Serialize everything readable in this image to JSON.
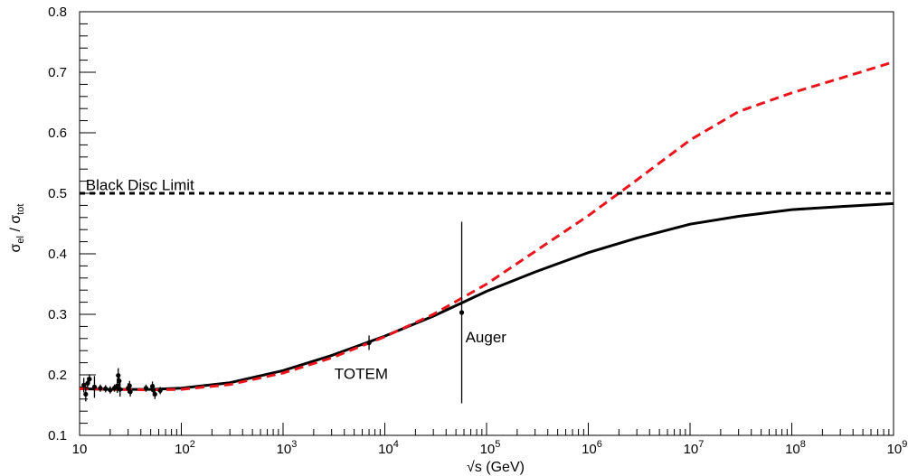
{
  "chart_data": {
    "type": "line",
    "xlabel": "√s (GeV)",
    "ylabel_main": "σ",
    "ylabel_sub1": "el",
    "ylabel_mid": " / σ",
    "ylabel_sub2": "tot",
    "xscale": "log",
    "xlim": [
      10,
      1000000000
    ],
    "ylim": [
      0.1,
      0.8
    ],
    "x_ticks": [
      {
        "value": 10,
        "base": "10",
        "exp": ""
      },
      {
        "value": 100,
        "base": "10",
        "exp": "2"
      },
      {
        "value": 1000,
        "base": "10",
        "exp": "3"
      },
      {
        "value": 10000,
        "base": "10",
        "exp": "4"
      },
      {
        "value": 100000,
        "base": "10",
        "exp": "5"
      },
      {
        "value": 1000000,
        "base": "10",
        "exp": "6"
      },
      {
        "value": 10000000,
        "base": "10",
        "exp": "7"
      },
      {
        "value": 100000000,
        "base": "10",
        "exp": "8"
      },
      {
        "value": 1000000000,
        "base": "10",
        "exp": "9"
      }
    ],
    "y_ticks": [
      {
        "value": 0.1,
        "label": "0.1"
      },
      {
        "value": 0.2,
        "label": "0.2"
      },
      {
        "value": 0.3,
        "label": "0.3"
      },
      {
        "value": 0.4,
        "label": "0.4"
      },
      {
        "value": 0.5,
        "label": "0.5"
      },
      {
        "value": 0.6,
        "label": "0.6"
      },
      {
        "value": 0.7,
        "label": "0.7"
      },
      {
        "value": 0.8,
        "label": "0.8"
      }
    ],
    "series": [
      {
        "style": "solid",
        "color": "#000000",
        "x": [
          10,
          20,
          50,
          100,
          300,
          1000,
          3000,
          10000,
          30000,
          100000,
          300000,
          1000000,
          3000000,
          10000000,
          30000000,
          100000000,
          300000000,
          1000000000
        ],
        "y": [
          0.177,
          0.176,
          0.176,
          0.178,
          0.187,
          0.207,
          0.232,
          0.264,
          0.297,
          0.338,
          0.37,
          0.402,
          0.426,
          0.449,
          0.462,
          0.473,
          0.478,
          0.483
        ]
      },
      {
        "style": "dashed",
        "color": "#e8161c",
        "x": [
          10,
          20,
          50,
          100,
          300,
          1000,
          3000,
          10000,
          30000,
          100000,
          300000,
          1000000,
          3000000,
          10000000,
          30000000,
          100000000,
          300000000,
          1000000000
        ],
        "y": [
          0.177,
          0.176,
          0.175,
          0.176,
          0.184,
          0.203,
          0.228,
          0.263,
          0.3,
          0.35,
          0.404,
          0.463,
          0.522,
          0.588,
          0.635,
          0.666,
          0.69,
          0.717
        ]
      },
      {
        "style": "dotted-black",
        "color": "#000000",
        "x": [
          10,
          1000000000
        ],
        "y": [
          0.5,
          0.5
        ]
      }
    ],
    "points": [
      {
        "x": 11,
        "y": 0.183,
        "err": 0.012
      },
      {
        "x": 11.5,
        "y": 0.168,
        "err": 0.012
      },
      {
        "x": 12,
        "y": 0.186,
        "err": 0.01
      },
      {
        "x": 12.5,
        "y": 0.193,
        "err": 0.008
      },
      {
        "x": 14,
        "y": 0.18,
        "err": 0.018
      },
      {
        "x": 16,
        "y": 0.178,
        "err": 0.006
      },
      {
        "x": 18,
        "y": 0.177,
        "err": 0.006
      },
      {
        "x": 20,
        "y": 0.175,
        "err": 0.006
      },
      {
        "x": 22,
        "y": 0.178,
        "err": 0.006
      },
      {
        "x": 23.5,
        "y": 0.182,
        "err": 0.012
      },
      {
        "x": 24,
        "y": 0.199,
        "err": 0.012
      },
      {
        "x": 24.5,
        "y": 0.19,
        "err": 0.01
      },
      {
        "x": 25,
        "y": 0.176,
        "err": 0.012
      },
      {
        "x": 30,
        "y": 0.178,
        "err": 0.008
      },
      {
        "x": 31,
        "y": 0.182,
        "err": 0.008
      },
      {
        "x": 31.5,
        "y": 0.172,
        "err": 0.008
      },
      {
        "x": 45,
        "y": 0.178,
        "err": 0.006
      },
      {
        "x": 52,
        "y": 0.181,
        "err": 0.008
      },
      {
        "x": 53,
        "y": 0.175,
        "err": 0.01
      },
      {
        "x": 55,
        "y": 0.168,
        "err": 0.008
      },
      {
        "x": 62,
        "y": 0.174,
        "err": 0.006
      },
      {
        "x": 7000,
        "y": 0.253,
        "err": 0.012
      },
      {
        "x": 57000,
        "y": 0.303,
        "err": 0.15
      }
    ],
    "annotations": [
      {
        "key": "black_disc",
        "text": "Black Disc Limit",
        "x": 11.5,
        "y": 0.505
      },
      {
        "key": "totem",
        "text": "TOTEM",
        "x": 3200,
        "y": 0.193
      },
      {
        "key": "auger",
        "text": "Auger",
        "x": 62000,
        "y": 0.254
      }
    ],
    "grid": false
  }
}
